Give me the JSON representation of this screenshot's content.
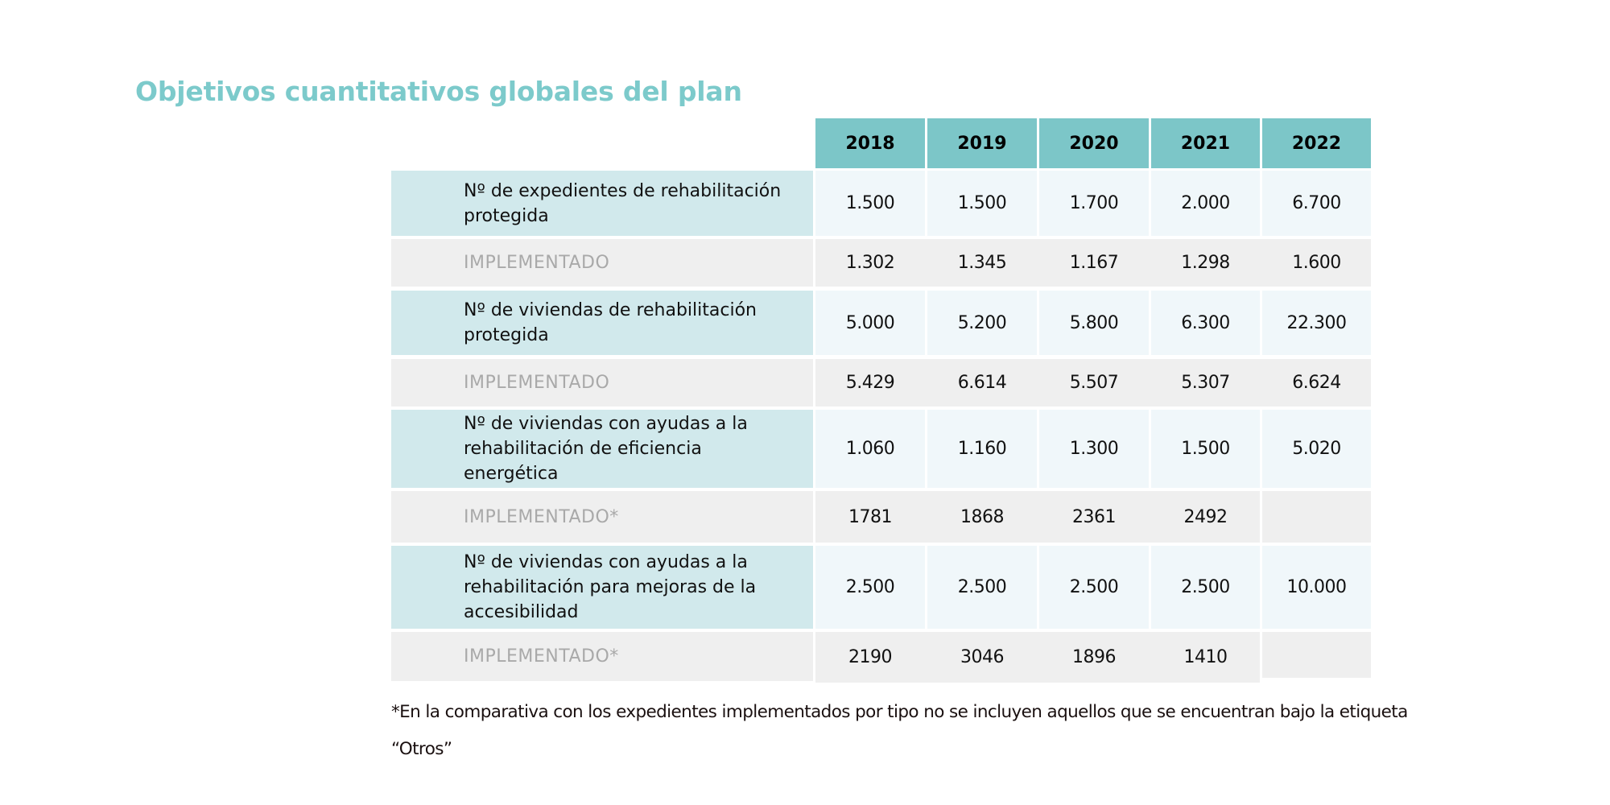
{
  "title": "Objetivos cuantitativos globales del plan",
  "table": {
    "years": [
      "2018",
      "2019",
      "2020",
      "2021",
      "2022"
    ],
    "rows": [
      {
        "type": "target",
        "label": "Nº de expedientes de rehabilitación protegida",
        "values": [
          "1.500",
          "1.500",
          "1.700",
          "2.000",
          "6.700"
        ]
      },
      {
        "type": "impl",
        "label": "IMPLEMENTADO",
        "values": [
          "1.302",
          "1.345",
          "1.167",
          "1.298",
          "1.600"
        ]
      },
      {
        "type": "target",
        "label": "Nº de viviendas de rehabilitación protegida",
        "values": [
          "5.000",
          "5.200",
          "5.800",
          "6.300",
          "22.300"
        ]
      },
      {
        "type": "impl",
        "label": "IMPLEMENTADO",
        "values": [
          "5.429",
          "6.614",
          "5.507",
          "5.307",
          "6.624"
        ]
      },
      {
        "type": "target",
        "label": "Nº de viviendas con ayudas a la rehabilitación de eficiencia energética",
        "values": [
          "1.060",
          "1.160",
          "1.300",
          "1.500",
          "5.020"
        ]
      },
      {
        "type": "impl",
        "label": "IMPLEMENTADO*",
        "values": [
          "1781",
          "1868",
          "2361",
          "2492",
          ""
        ]
      },
      {
        "type": "target",
        "label": "Nº de viviendas con ayudas a la rehabilitación para mejoras de la accesibilidad",
        "values": [
          "2.500",
          "2.500",
          "2.500",
          "2.500",
          "10.000"
        ]
      },
      {
        "type": "impl",
        "label": "IMPLEMENTADO*",
        "values": [
          "2190",
          "3046",
          "1896",
          "1410",
          ""
        ]
      }
    ]
  },
  "footnote": "*En la comparativa con los expedientes implementados por tipo no se incluyen aquellos que se encuentran bajo la etiqueta “Otros”",
  "colors": {
    "title": "#7ccacb",
    "header": "#7cc6c8",
    "label_target": "#d1e9ec",
    "implemented": "#efefef",
    "cell_target": "#f0f7fa"
  }
}
